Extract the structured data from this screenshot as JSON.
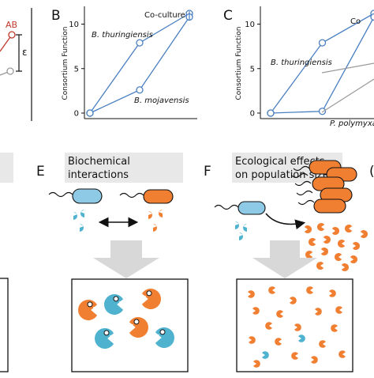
{
  "colors": {
    "blue_line": "#4a7fc1",
    "gray_line": "#9a9a9a",
    "red": "#c0392b",
    "blue_cell": "#8ec9e6",
    "orange": "#f07f32",
    "teal_pac": "#4fb3cf",
    "panel_bg": "#e8e8e8"
  },
  "panel_a_partial": {
    "label_ab": "AB",
    "epsilon": "ε"
  },
  "panel_b": {
    "letter": "B",
    "ylabel": "Consortium Function",
    "ticks": [
      "0",
      "5",
      "10"
    ],
    "label_coculture": "Co-culture",
    "label_thuringiensis": "B. thuringiensis",
    "label_mojavensis": "B. mojavensis"
  },
  "panel_c": {
    "letter": "C",
    "ylabel": "Consortium Function",
    "ticks": [
      "0",
      "5",
      "10"
    ],
    "label_coculture": "Co",
    "label_thuringiensis": "B. thuringiensis",
    "label_polymyxa": "P. polymyxa"
  },
  "panel_e": {
    "letter": "E",
    "title_line1": "Biochemical",
    "title_line2": "interactions"
  },
  "panel_f": {
    "letter": "F",
    "title_line1": "Ecological effects",
    "title_line2": "on population size"
  },
  "chart_data": [
    {
      "type": "line",
      "panel": "B",
      "ylabel": "Consortium Function",
      "ylim": [
        0,
        12
      ],
      "yticks": [
        0,
        5,
        10
      ],
      "x": [
        0,
        1,
        2
      ],
      "series": [
        {
          "name": "B. thuringiensis",
          "values": [
            0,
            7.9,
            11.2
          ]
        },
        {
          "name": "B. mojavensis",
          "values": [
            0,
            2.6,
            10.8
          ]
        }
      ],
      "grid": false
    },
    {
      "type": "line",
      "panel": "C",
      "ylabel": "Consortium Function",
      "ylim": [
        0,
        12
      ],
      "yticks": [
        0,
        5,
        10
      ],
      "x": [
        0,
        1,
        2
      ],
      "series": [
        {
          "name": "B. thuringiensis",
          "values": [
            0,
            7.9,
            11.2
          ]
        },
        {
          "name": "P. polymyxa",
          "values": [
            0,
            0.2,
            10.8
          ]
        }
      ],
      "grid": false
    }
  ]
}
